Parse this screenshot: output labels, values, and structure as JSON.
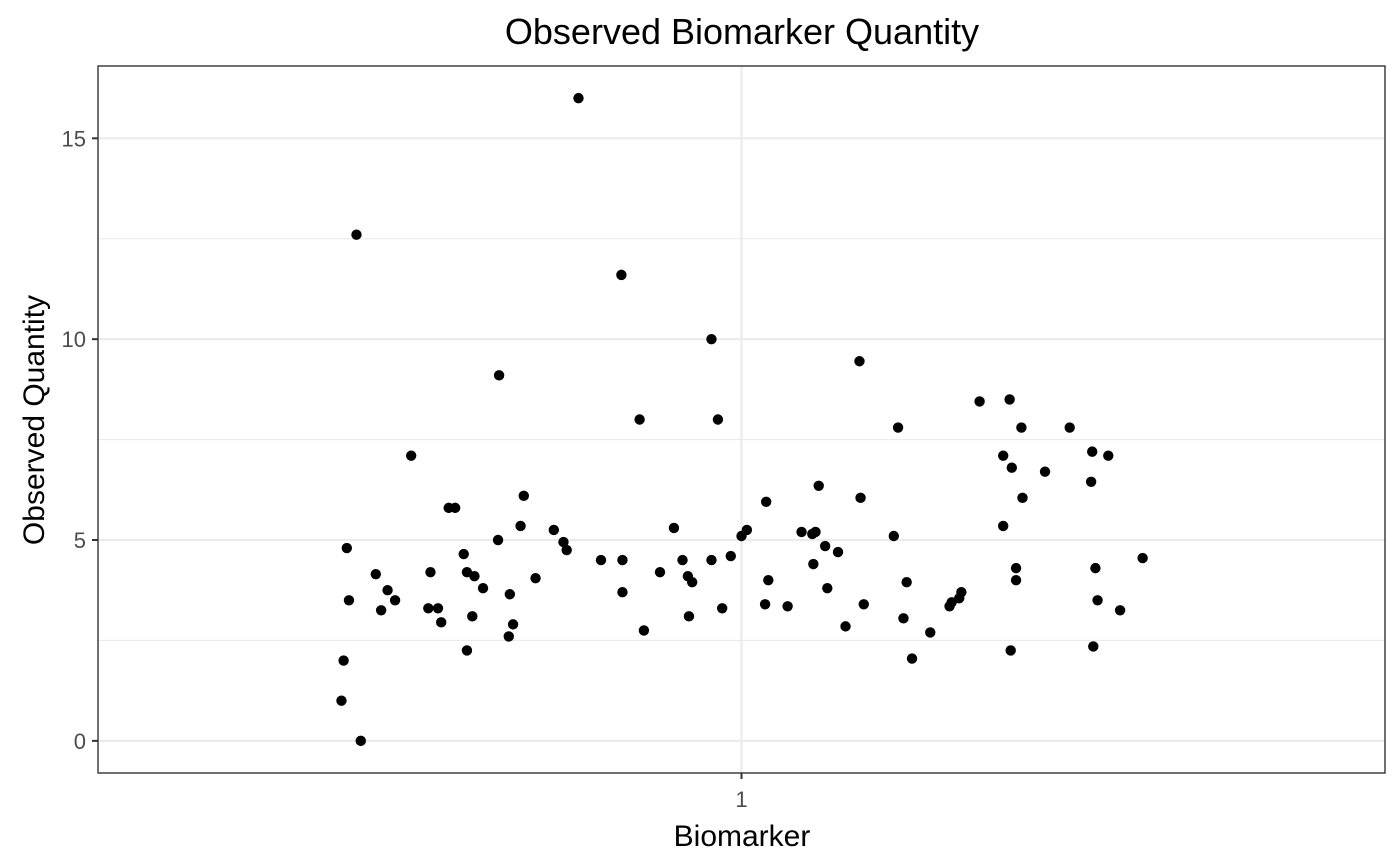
{
  "chart_data": {
    "type": "scatter",
    "title": "Observed Biomarker Quantity",
    "xlabel": "Biomarker",
    "ylabel": "Observed Quantity",
    "x_categories": [
      "1"
    ],
    "xlim": [
      0.4,
      1.6
    ],
    "ylim": [
      -0.8,
      16.8
    ],
    "y_ticks": [
      0,
      5,
      10,
      15
    ],
    "grid": true,
    "legend": "none",
    "point_color": "#000000",
    "points": [
      {
        "x": 0.627,
        "y": 1.0
      },
      {
        "x": 0.629,
        "y": 2.0
      },
      {
        "x": 0.632,
        "y": 4.8
      },
      {
        "x": 0.634,
        "y": 3.5
      },
      {
        "x": 0.641,
        "y": 12.6
      },
      {
        "x": 0.645,
        "y": 0.0
      },
      {
        "x": 0.659,
        "y": 4.15
      },
      {
        "x": 0.664,
        "y": 3.25
      },
      {
        "x": 0.67,
        "y": 3.75
      },
      {
        "x": 0.677,
        "y": 3.5
      },
      {
        "x": 0.692,
        "y": 7.1
      },
      {
        "x": 0.708,
        "y": 3.3
      },
      {
        "x": 0.71,
        "y": 4.2
      },
      {
        "x": 0.717,
        "y": 3.3
      },
      {
        "x": 0.72,
        "y": 2.95
      },
      {
        "x": 0.727,
        "y": 5.8
      },
      {
        "x": 0.733,
        "y": 5.8
      },
      {
        "x": 0.741,
        "y": 4.65
      },
      {
        "x": 0.744,
        "y": 4.2
      },
      {
        "x": 0.744,
        "y": 2.25
      },
      {
        "x": 0.749,
        "y": 3.1
      },
      {
        "x": 0.751,
        "y": 4.1
      },
      {
        "x": 0.759,
        "y": 3.8
      },
      {
        "x": 0.773,
        "y": 5.0
      },
      {
        "x": 0.774,
        "y": 9.1
      },
      {
        "x": 0.783,
        "y": 2.6
      },
      {
        "x": 0.784,
        "y": 3.65
      },
      {
        "x": 0.787,
        "y": 2.9
      },
      {
        "x": 0.794,
        "y": 5.35
      },
      {
        "x": 0.797,
        "y": 6.1
      },
      {
        "x": 0.808,
        "y": 4.05
      },
      {
        "x": 0.825,
        "y": 5.25
      },
      {
        "x": 0.834,
        "y": 4.95
      },
      {
        "x": 0.837,
        "y": 4.75
      },
      {
        "x": 0.848,
        "y": 16.0
      },
      {
        "x": 0.869,
        "y": 4.5
      },
      {
        "x": 0.888,
        "y": 11.6
      },
      {
        "x": 0.889,
        "y": 3.7
      },
      {
        "x": 0.889,
        "y": 4.5
      },
      {
        "x": 0.905,
        "y": 8.0
      },
      {
        "x": 0.909,
        "y": 2.75
      },
      {
        "x": 0.924,
        "y": 4.2
      },
      {
        "x": 0.937,
        "y": 5.3
      },
      {
        "x": 0.945,
        "y": 4.5
      },
      {
        "x": 0.95,
        "y": 4.1
      },
      {
        "x": 0.951,
        "y": 3.1
      },
      {
        "x": 0.954,
        "y": 3.95
      },
      {
        "x": 0.972,
        "y": 10.0
      },
      {
        "x": 0.972,
        "y": 4.5
      },
      {
        "x": 0.978,
        "y": 8.0
      },
      {
        "x": 0.982,
        "y": 3.3
      },
      {
        "x": 0.99,
        "y": 4.6
      },
      {
        "x": 1.0,
        "y": 5.1
      },
      {
        "x": 1.005,
        "y": 5.25
      },
      {
        "x": 1.022,
        "y": 3.4
      },
      {
        "x": 1.023,
        "y": 5.95
      },
      {
        "x": 1.025,
        "y": 4.0
      },
      {
        "x": 1.043,
        "y": 3.35
      },
      {
        "x": 1.056,
        "y": 5.2
      },
      {
        "x": 1.066,
        "y": 5.15
      },
      {
        "x": 1.067,
        "y": 4.4
      },
      {
        "x": 1.069,
        "y": 5.2
      },
      {
        "x": 1.072,
        "y": 6.35
      },
      {
        "x": 1.078,
        "y": 4.85
      },
      {
        "x": 1.08,
        "y": 3.8
      },
      {
        "x": 1.09,
        "y": 4.7
      },
      {
        "x": 1.097,
        "y": 2.85
      },
      {
        "x": 1.11,
        "y": 9.45
      },
      {
        "x": 1.111,
        "y": 6.05
      },
      {
        "x": 1.114,
        "y": 3.4
      },
      {
        "x": 1.142,
        "y": 5.1
      },
      {
        "x": 1.146,
        "y": 7.8
      },
      {
        "x": 1.151,
        "y": 3.05
      },
      {
        "x": 1.154,
        "y": 3.95
      },
      {
        "x": 1.159,
        "y": 2.05
      },
      {
        "x": 1.176,
        "y": 2.7
      },
      {
        "x": 1.194,
        "y": 3.35
      },
      {
        "x": 1.196,
        "y": 3.45
      },
      {
        "x": 1.203,
        "y": 3.55
      },
      {
        "x": 1.205,
        "y": 3.7
      },
      {
        "x": 1.222,
        "y": 8.45
      },
      {
        "x": 1.244,
        "y": 7.1
      },
      {
        "x": 1.244,
        "y": 5.35
      },
      {
        "x": 1.25,
        "y": 8.5
      },
      {
        "x": 1.251,
        "y": 2.25
      },
      {
        "x": 1.252,
        "y": 6.8
      },
      {
        "x": 1.256,
        "y": 4.3
      },
      {
        "x": 1.256,
        "y": 4.0
      },
      {
        "x": 1.261,
        "y": 7.8
      },
      {
        "x": 1.262,
        "y": 6.05
      },
      {
        "x": 1.283,
        "y": 6.7
      },
      {
        "x": 1.306,
        "y": 7.8
      },
      {
        "x": 1.326,
        "y": 6.45
      },
      {
        "x": 1.327,
        "y": 7.2
      },
      {
        "x": 1.328,
        "y": 2.35
      },
      {
        "x": 1.33,
        "y": 4.3
      },
      {
        "x": 1.332,
        "y": 3.5
      },
      {
        "x": 1.342,
        "y": 7.1
      },
      {
        "x": 1.353,
        "y": 3.25
      },
      {
        "x": 1.374,
        "y": 4.55
      }
    ]
  }
}
